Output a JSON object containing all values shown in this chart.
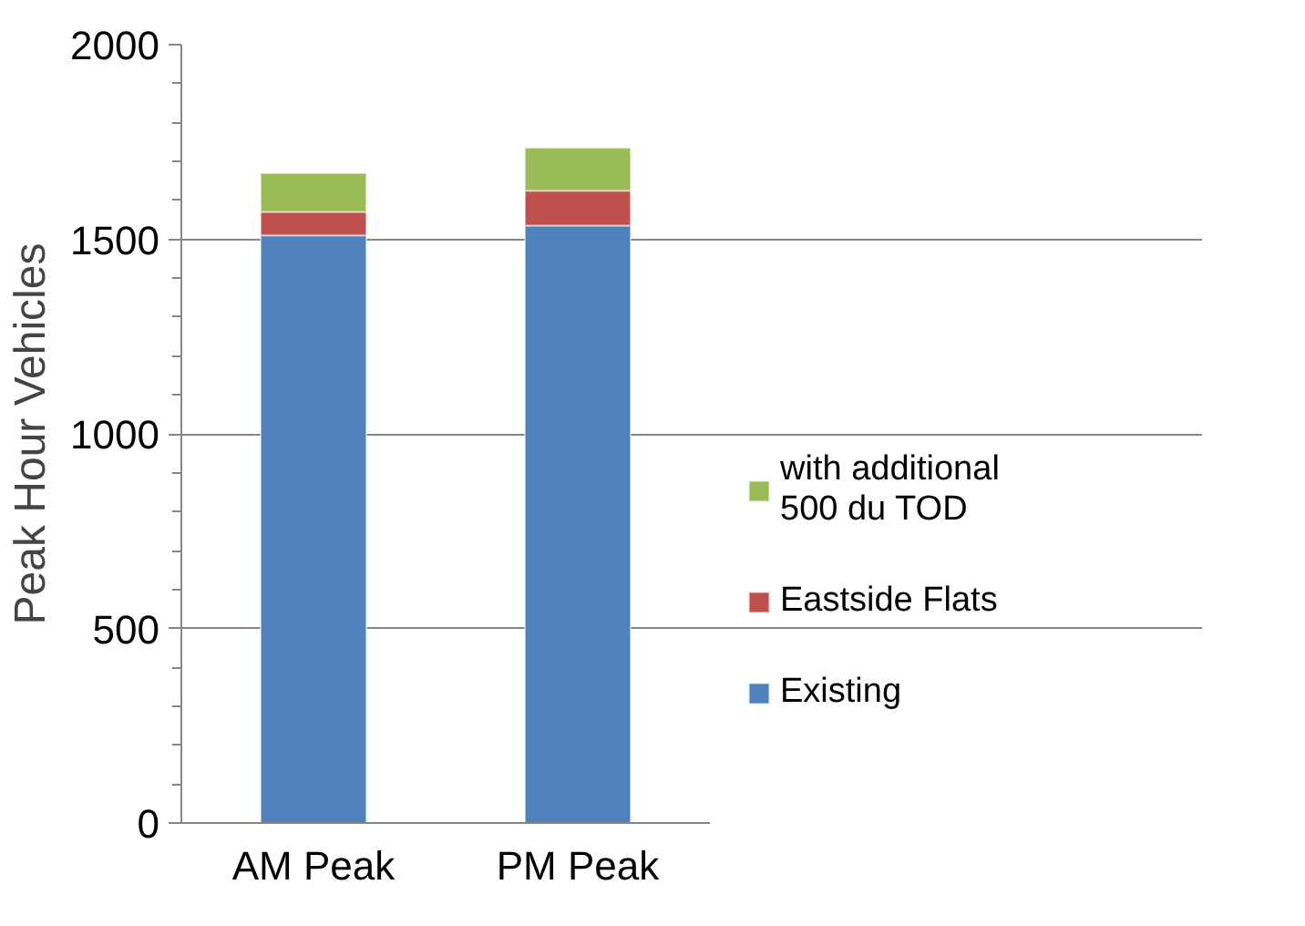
{
  "chart_data": {
    "type": "bar",
    "stacked": true,
    "ylabel": "Peak Hour Vehicles",
    "categories": [
      "AM Peak",
      "PM Peak"
    ],
    "series": [
      {
        "name": "Existing",
        "color": "#4f81bd",
        "values": [
          1510,
          1535
        ]
      },
      {
        "name": "Eastside Flats",
        "color": "#c0504d",
        "values": [
          60,
          90
        ]
      },
      {
        "name": "with additional 500 du TOD",
        "color": "#9bbb59",
        "values": [
          100,
          110
        ]
      }
    ],
    "ylim": [
      0,
      2000
    ],
    "yticks": [
      0,
      500,
      1000,
      1500,
      2000
    ],
    "grid": "y",
    "legend": "right"
  }
}
